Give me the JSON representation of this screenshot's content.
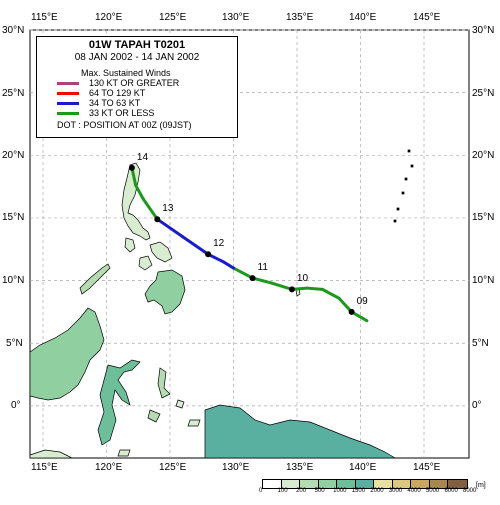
{
  "legend": {
    "title": "01W  TAPAH  T0201",
    "dates": "08 JAN 2002 - 14 JAN 2002",
    "heading": "Max. Sustained Winds",
    "items": [
      {
        "label": "130 KT OR GREATER",
        "color": "#b0407a"
      },
      {
        "label": "64 TO 129 KT",
        "color": "#ff0000"
      },
      {
        "label": "34 TO 63 KT",
        "color": "#1a1ad0"
      },
      {
        "label": "33 KT OR LESS",
        "color": "#1a9a1a"
      }
    ],
    "dot_note": "DOT : POSITION AT 00Z (09JST)"
  },
  "axes": {
    "lon_labels": [
      "115°E",
      "120°E",
      "125°E",
      "130°E",
      "135°E",
      "140°E",
      "145°E"
    ],
    "lat_labels": [
      "30°N",
      "25°N",
      "20°N",
      "15°N",
      "10°N",
      "5°N",
      "0°"
    ]
  },
  "track": {
    "points": [
      {
        "lon": 140.5,
        "lat": 6.8,
        "cat": 3
      },
      {
        "lon": 139.3,
        "lat": 7.5,
        "cat": 3
      },
      {
        "lon": 138.3,
        "lat": 8.6,
        "cat": 3
      },
      {
        "lon": 137.0,
        "lat": 9.3,
        "cat": 3
      },
      {
        "lon": 135.8,
        "lat": 9.4,
        "cat": 3
      },
      {
        "lon": 134.6,
        "lat": 9.3,
        "cat": 3
      },
      {
        "lon": 133.0,
        "lat": 9.8,
        "cat": 3
      },
      {
        "lon": 131.5,
        "lat": 10.2,
        "cat": 3
      },
      {
        "lon": 130.0,
        "lat": 11.0,
        "cat": 3
      },
      {
        "lon": 129.2,
        "lat": 11.5,
        "cat": 2
      },
      {
        "lon": 128.0,
        "lat": 12.1,
        "cat": 2
      },
      {
        "lon": 126.0,
        "lat": 13.5,
        "cat": 2
      },
      {
        "lon": 124.0,
        "lat": 14.9,
        "cat": 2
      },
      {
        "lon": 122.9,
        "lat": 16.5,
        "cat": 3
      },
      {
        "lon": 122.3,
        "lat": 17.6,
        "cat": 3
      },
      {
        "lon": 122.0,
        "lat": 19.0,
        "cat": 3
      }
    ],
    "days": [
      {
        "label": "09",
        "lon": 139.3,
        "lat": 7.5
      },
      {
        "label": "10",
        "lon": 134.6,
        "lat": 9.3
      },
      {
        "label": "11",
        "lon": 131.5,
        "lat": 10.2
      },
      {
        "label": "12",
        "lon": 128.0,
        "lat": 12.1
      },
      {
        "label": "13",
        "lon": 124.0,
        "lat": 14.9
      },
      {
        "label": "14",
        "lon": 122.0,
        "lat": 19.0
      }
    ]
  },
  "colorbar": {
    "unit": "[m]",
    "labels": [
      "0",
      "100",
      "200",
      "500",
      "1000",
      "1500",
      "2000",
      "3000",
      "4000",
      "5000",
      "6000",
      "8000"
    ],
    "colors": [
      "#ffffff",
      "#d8ecd0",
      "#b4dcb0",
      "#90cfa0",
      "#6cbf98",
      "#5ab0a0",
      "#e8e0a0",
      "#d8c880",
      "#c8a860",
      "#a88850",
      "#806040"
    ]
  }
}
